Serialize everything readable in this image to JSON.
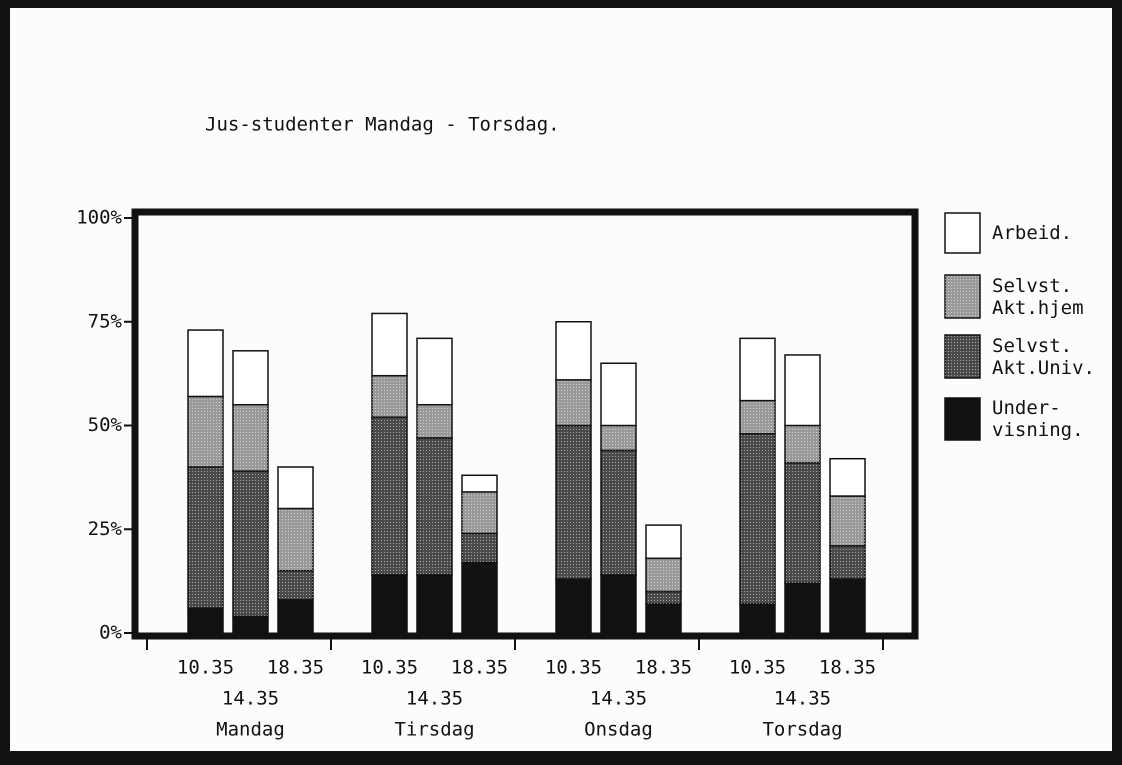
{
  "chart_data": {
    "type": "stacked-bar",
    "title": "Jus-studenter Mandag - Torsdag.",
    "groups": [
      "Mandag",
      "Tirsdag",
      "Onsdag",
      "Torsdag"
    ],
    "categories": [
      "10.35",
      "14.35",
      "18.35",
      "10.35",
      "14.35",
      "18.35",
      "10.35",
      "14.35",
      "18.35",
      "10.35",
      "14.35",
      "18.35"
    ],
    "series": [
      {
        "name": "Under-\nvisning.",
        "color": "#111111",
        "values": [
          6,
          4,
          8,
          14,
          14,
          17,
          13,
          14,
          7,
          7,
          12,
          13
        ]
      },
      {
        "name": "Selvst.\nAkt.Univ.",
        "color": "#4a4a4a",
        "values": [
          34,
          35,
          7,
          38,
          33,
          7,
          37,
          30,
          3,
          41,
          29,
          8
        ]
      },
      {
        "name": "Selvst.\nAkt.hjem",
        "color": "#9a9a9a",
        "values": [
          17,
          16,
          15,
          10,
          8,
          10,
          11,
          6,
          8,
          8,
          9,
          12
        ]
      },
      {
        "name": "Arbeid.",
        "color": "#ffffff",
        "values": [
          16,
          13,
          10,
          15,
          16,
          4,
          14,
          15,
          8,
          15,
          17,
          9
        ]
      }
    ],
    "ylim": [
      0,
      100
    ],
    "yticks": [
      {
        "value": 0,
        "label": "0%"
      },
      {
        "value": 25,
        "label": "25%"
      },
      {
        "value": 50,
        "label": "50%"
      },
      {
        "value": 75,
        "label": "75%"
      },
      {
        "value": 100,
        "label": "100%"
      }
    ],
    "legend": "right"
  }
}
